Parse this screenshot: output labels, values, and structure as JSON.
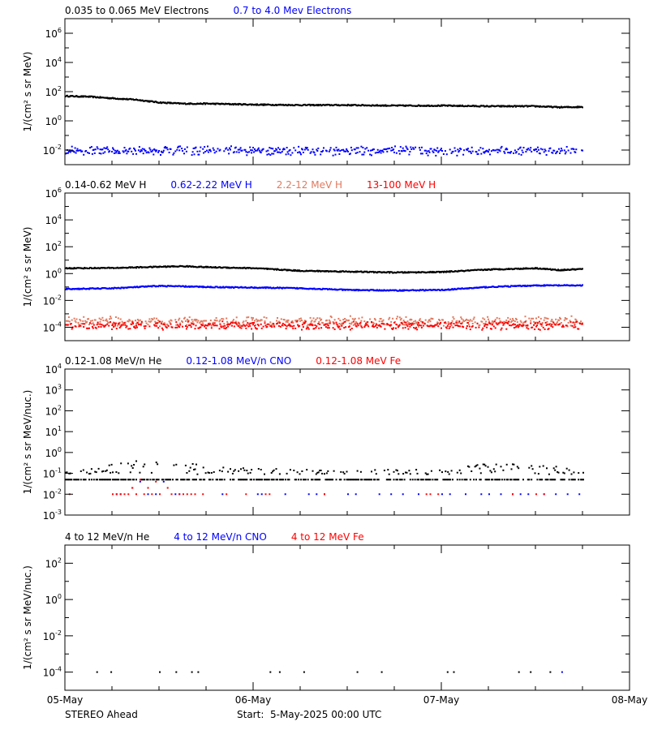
{
  "chart_data": [
    {
      "type": "scatter",
      "yscale": "log",
      "ylim": [
        0.001,
        10000000.0
      ],
      "ytick_exponents": [
        6,
        4,
        2,
        0,
        -2
      ],
      "ylabel": "1/(cm² s sr MeV)",
      "legend": [
        {
          "name": "0.035 to 0.065 MeV Electrons",
          "color": "#000000"
        },
        {
          "name": "0.7 to 4.0 Mev Electrons",
          "color": "#0000ff"
        }
      ],
      "series": [
        {
          "name": "0.035 to 0.065 MeV Electrons",
          "color": "#000000",
          "style": "line",
          "points": [
            [
              0,
              50
            ],
            [
              3,
              45
            ],
            [
              6,
              35
            ],
            [
              9,
              28
            ],
            [
              12,
              18
            ],
            [
              15,
              15
            ],
            [
              18,
              15
            ],
            [
              21,
              14
            ],
            [
              24,
              13
            ],
            [
              30,
              12
            ],
            [
              36,
              12
            ],
            [
              42,
              11
            ],
            [
              48,
              11
            ],
            [
              54,
              10
            ],
            [
              60,
              10
            ],
            [
              63,
              8.5
            ],
            [
              66,
              9
            ]
          ]
        },
        {
          "name": "0.7 to 4.0 Mev Electrons",
          "color": "#0000ff",
          "style": "band",
          "range_hours": [
            0,
            66
          ],
          "band": [
            0.004,
            0.02
          ]
        }
      ]
    },
    {
      "type": "scatter",
      "yscale": "log",
      "ylim": [
        1e-05,
        1000000.0
      ],
      "ytick_exponents": [
        6,
        4,
        2,
        0,
        -2,
        -4
      ],
      "ylabel": "1/(cm² s sr MeV)",
      "legend": [
        {
          "name": "0.14-0.62 MeV H",
          "color": "#000000"
        },
        {
          "name": "0.62-2.22 MeV H",
          "color": "#0000ff"
        },
        {
          "name": "2.2-12 MeV H",
          "color": "#e07a5f"
        },
        {
          "name": "13-100 MeV H",
          "color": "#ff0000"
        }
      ],
      "series": [
        {
          "name": "0.14-0.62 MeV H",
          "color": "#000000",
          "style": "line",
          "points": [
            [
              0,
              2.5
            ],
            [
              6,
              2.6
            ],
            [
              12,
              3.2
            ],
            [
              15,
              3.5
            ],
            [
              18,
              3.0
            ],
            [
              24,
              2.5
            ],
            [
              30,
              1.6
            ],
            [
              36,
              1.4
            ],
            [
              42,
              1.2
            ],
            [
              48,
              1.3
            ],
            [
              54,
              2.0
            ],
            [
              60,
              2.5
            ],
            [
              63,
              1.8
            ],
            [
              66,
              2.2
            ]
          ]
        },
        {
          "name": "0.62-2.22 MeV H",
          "color": "#0000ff",
          "style": "line",
          "points": [
            [
              0,
              0.07
            ],
            [
              6,
              0.08
            ],
            [
              12,
              0.12
            ],
            [
              18,
              0.1
            ],
            [
              24,
              0.09
            ],
            [
              30,
              0.08
            ],
            [
              36,
              0.06
            ],
            [
              42,
              0.055
            ],
            [
              48,
              0.06
            ],
            [
              54,
              0.1
            ],
            [
              60,
              0.13
            ],
            [
              66,
              0.13
            ]
          ]
        },
        {
          "name": "2.2-12 MeV H",
          "color": "#e07a5f",
          "style": "band",
          "range_hours": [
            0,
            66
          ],
          "band": [
            0.0001,
            0.0007
          ]
        },
        {
          "name": "13-100 MeV H",
          "color": "#ff0000",
          "style": "band",
          "range_hours": [
            0,
            66
          ],
          "band": [
            6e-05,
            0.0003
          ]
        }
      ]
    },
    {
      "type": "scatter",
      "yscale": "log",
      "ylim": [
        0.001,
        10000.0
      ],
      "ytick_exponents": [
        4,
        3,
        2,
        1,
        0,
        -1,
        -2,
        -3
      ],
      "ylabel": "1/(cm² s sr MeV/nuc.)",
      "legend": [
        {
          "name": "0.12-1.08 MeV/n He",
          "color": "#000000"
        },
        {
          "name": "0.12-1.08 MeV/n CNO",
          "color": "#0000ff"
        },
        {
          "name": "0.12-1.08 MeV Fe",
          "color": "#ff0000"
        }
      ],
      "series": [
        {
          "name": "0.12-1.08 MeV/n He",
          "color": "#000000",
          "style": "envelope",
          "baseline": 0.05,
          "points": [
            [
              0,
              0.12
            ],
            [
              6,
              0.3
            ],
            [
              10,
              0.45
            ],
            [
              16,
              0.3
            ],
            [
              20,
              0.2
            ],
            [
              30,
              0.15
            ],
            [
              48,
              0.15
            ],
            [
              54,
              0.3
            ],
            [
              60,
              0.25
            ],
            [
              66,
              0.2
            ]
          ]
        },
        {
          "name": "0.12-1.08 MeV/n CNO",
          "color": "#0000ff",
          "style": "points",
          "points": [
            [
              6.5,
              0.01
            ],
            [
              7,
              0.01
            ],
            [
              8.5,
              0.02
            ],
            [
              9.5,
              0.04
            ],
            [
              10.5,
              0.01
            ],
            [
              11.5,
              0.01
            ],
            [
              12.5,
              0.04
            ],
            [
              14,
              0.01
            ],
            [
              14.5,
              0.01
            ],
            [
              20,
              0.01
            ],
            [
              24.5,
              0.01
            ],
            [
              25,
              0.01
            ],
            [
              28,
              0.01
            ],
            [
              31,
              0.01
            ],
            [
              32,
              0.01
            ],
            [
              33,
              0.01
            ],
            [
              36,
              0.01
            ],
            [
              37,
              0.01
            ],
            [
              40,
              0.01
            ],
            [
              41.5,
              0.01
            ],
            [
              43,
              0.01
            ],
            [
              45,
              0.01
            ],
            [
              48,
              0.01
            ],
            [
              49,
              0.01
            ],
            [
              51,
              0.01
            ],
            [
              53,
              0.01
            ],
            [
              54,
              0.01
            ],
            [
              55.5,
              0.01
            ],
            [
              57,
              0.01
            ],
            [
              58,
              0.01
            ],
            [
              59,
              0.01
            ],
            [
              61,
              0.01
            ],
            [
              62.5,
              0.01
            ],
            [
              64,
              0.01
            ],
            [
              65.5,
              0.01
            ]
          ]
        },
        {
          "name": "0.12-1.08 MeV Fe",
          "color": "#ff0000",
          "style": "points",
          "points": [
            [
              0.5,
              0.01
            ],
            [
              6,
              0.01
            ],
            [
              6.5,
              0.01
            ],
            [
              7,
              0.01
            ],
            [
              7.5,
              0.01
            ],
            [
              8,
              0.01
            ],
            [
              8.5,
              0.02
            ],
            [
              9,
              0.01
            ],
            [
              9.5,
              0.05
            ],
            [
              10,
              0.01
            ],
            [
              10.5,
              0.02
            ],
            [
              11,
              0.01
            ],
            [
              11.5,
              0.04
            ],
            [
              12,
              0.01
            ],
            [
              13,
              0.02
            ],
            [
              13.5,
              0.01
            ],
            [
              14.5,
              0.01
            ],
            [
              15,
              0.01
            ],
            [
              15.5,
              0.01
            ],
            [
              16,
              0.01
            ],
            [
              16.5,
              0.01
            ],
            [
              17.5,
              0.01
            ],
            [
              20.5,
              0.01
            ],
            [
              23,
              0.01
            ],
            [
              25.5,
              0.01
            ],
            [
              26,
              0.01
            ],
            [
              33,
              0.01
            ],
            [
              46,
              0.01
            ],
            [
              46.5,
              0.01
            ],
            [
              47.5,
              0.01
            ],
            [
              57,
              0.01
            ],
            [
              60,
              0.01
            ],
            [
              61,
              0.01
            ]
          ]
        }
      ]
    },
    {
      "type": "scatter",
      "yscale": "log",
      "ylim": [
        1e-05,
        1000.0
      ],
      "ytick_exponents": [
        2,
        0,
        -2,
        -4
      ],
      "ylabel": "1/(cm² s sr MeV/nuc.)",
      "legend": [
        {
          "name": "4 to 12 MeV/n He",
          "color": "#000000"
        },
        {
          "name": "4 to 12 MeV/n CNO",
          "color": "#0000ff"
        },
        {
          "name": "4 to 12 MeV Fe",
          "color": "#ff0000"
        }
      ],
      "series": [
        {
          "name": "4 to 12 MeV/n He",
          "color": "#000000",
          "style": "points",
          "points": [
            [
              4.0,
              0.0001
            ],
            [
              5.8,
              0.0001
            ],
            [
              12.0,
              0.0001
            ],
            [
              14.1,
              0.0001
            ],
            [
              16.1,
              0.0001
            ],
            [
              16.9,
              0.0001
            ],
            [
              26.1,
              0.0001
            ],
            [
              27.3,
              0.0001
            ],
            [
              30.4,
              0.0001
            ],
            [
              37.2,
              0.0001
            ],
            [
              40.3,
              0.0001
            ],
            [
              48.7,
              0.0001
            ],
            [
              49.5,
              0.0001
            ],
            [
              57.8,
              0.0001
            ],
            [
              59.3,
              0.0001
            ],
            [
              61.8,
              0.0001
            ]
          ]
        },
        {
          "name": "4 to 12 MeV/n CNO",
          "color": "#0000ff",
          "style": "points",
          "points": [
            [
              63.3,
              0.0001
            ]
          ]
        },
        {
          "name": "4 to 12 MeV Fe",
          "color": "#ff0000",
          "style": "points",
          "points": []
        }
      ]
    }
  ],
  "x_axis": {
    "ticks": [
      "05-May",
      "06-May",
      "07-May",
      "08-May"
    ],
    "range_hours": [
      0,
      72
    ],
    "minor_tick_hours": 6
  },
  "footer": {
    "spacecraft": "STEREO Ahead",
    "start": "Start:  5-May-2025 00:00 UTC"
  }
}
